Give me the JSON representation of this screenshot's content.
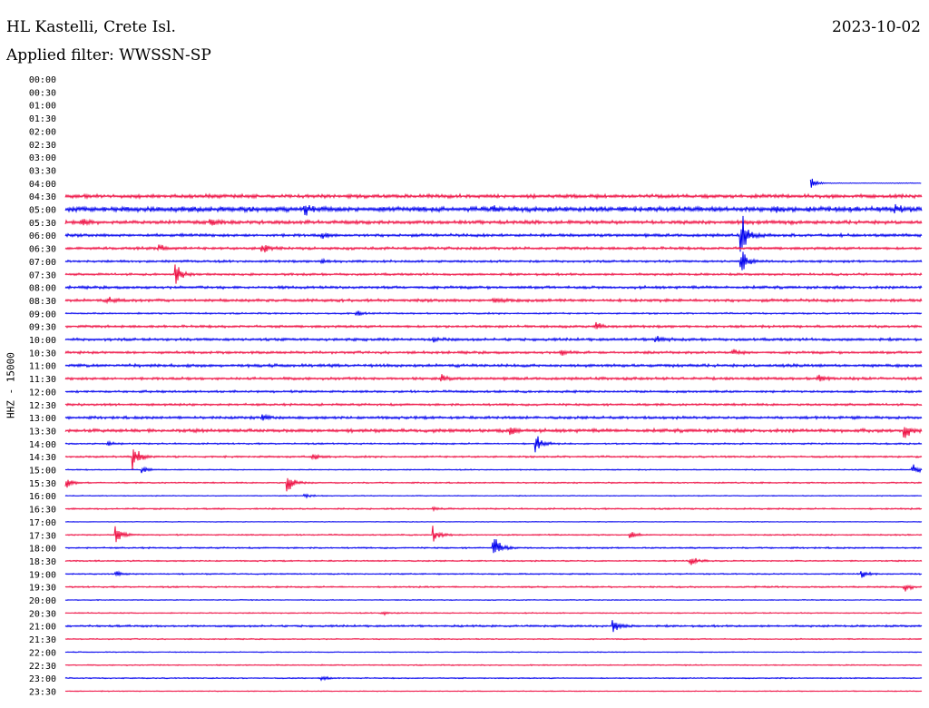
{
  "header": {
    "station": "HL Kastelli, Crete Isl.",
    "date": "2023-10-02",
    "filter": "Applied filter: WWSSN-SP"
  },
  "chart_data": {
    "type": "line",
    "title": "HL Kastelli, Crete Isl.",
    "subtitle": "Applied filter: WWSSN-SP",
    "ylabel": "HHZ - 15000",
    "y_tick_labels": [
      "00:00",
      "00:30",
      "01:00",
      "01:30",
      "02:00",
      "02:30",
      "03:00",
      "03:30",
      "04:00",
      "04:30",
      "05:00",
      "05:30",
      "06:00",
      "06:30",
      "07:00",
      "07:30",
      "08:00",
      "08:30",
      "09:00",
      "09:30",
      "10:00",
      "10:30",
      "11:00",
      "11:30",
      "12:00",
      "12:30",
      "13:00",
      "13:30",
      "14:00",
      "14:30",
      "15:00",
      "15:30",
      "16:00",
      "16:30",
      "17:00",
      "17:30",
      "18:00",
      "18:30",
      "19:00",
      "19:30",
      "20:00",
      "20:30",
      "21:00",
      "21:30",
      "22:00",
      "22:30",
      "23:00",
      "23:30"
    ],
    "grid": false,
    "colors": {
      "blue": "#0000ee",
      "red": "#ee1144"
    },
    "traces": [
      {
        "start": "04:00",
        "color": "blue",
        "start_fraction": 0.87,
        "noise": 0.3,
        "events": [
          [
            0.87,
            6
          ]
        ]
      },
      {
        "start": "04:30",
        "color": "red",
        "noise": 1.6,
        "events": []
      },
      {
        "start": "05:00",
        "color": "blue",
        "noise": 2.2,
        "events": [
          [
            0.28,
            4
          ],
          [
            0.5,
            3
          ],
          [
            0.83,
            3
          ],
          [
            0.97,
            4
          ]
        ]
      },
      {
        "start": "05:30",
        "color": "red",
        "noise": 1.6,
        "events": [
          [
            0.02,
            4
          ],
          [
            0.17,
            3
          ]
        ]
      },
      {
        "start": "06:00",
        "color": "blue",
        "noise": 1.3,
        "events": [
          [
            0.79,
            18
          ],
          [
            0.3,
            2
          ]
        ]
      },
      {
        "start": "06:30",
        "color": "red",
        "noise": 1.2,
        "events": [
          [
            0.11,
            4
          ],
          [
            0.23,
            5
          ]
        ]
      },
      {
        "start": "07:00",
        "color": "blue",
        "noise": 1.0,
        "events": [
          [
            0.79,
            10
          ],
          [
            0.3,
            2
          ]
        ]
      },
      {
        "start": "07:30",
        "color": "red",
        "noise": 1.0,
        "events": [
          [
            0.13,
            8
          ]
        ]
      },
      {
        "start": "08:00",
        "color": "blue",
        "noise": 1.2,
        "events": []
      },
      {
        "start": "08:30",
        "color": "red",
        "noise": 1.3,
        "events": [
          [
            0.05,
            3
          ],
          [
            0.5,
            3
          ]
        ]
      },
      {
        "start": "09:00",
        "color": "blue",
        "noise": 0.7,
        "events": [
          [
            0.34,
            3
          ]
        ]
      },
      {
        "start": "09:30",
        "color": "red",
        "noise": 1.1,
        "events": [
          [
            0.62,
            3
          ]
        ]
      },
      {
        "start": "10:00",
        "color": "blue",
        "noise": 1.2,
        "events": [
          [
            0.69,
            4
          ],
          [
            0.43,
            2
          ]
        ]
      },
      {
        "start": "10:30",
        "color": "red",
        "noise": 1.1,
        "events": [
          [
            0.58,
            3
          ],
          [
            0.78,
            3
          ]
        ]
      },
      {
        "start": "11:00",
        "color": "blue",
        "noise": 1.3,
        "events": []
      },
      {
        "start": "11:30",
        "color": "red",
        "noise": 1.2,
        "events": [
          [
            0.44,
            3
          ],
          [
            0.88,
            3
          ]
        ]
      },
      {
        "start": "12:00",
        "color": "blue",
        "noise": 1.0,
        "events": []
      },
      {
        "start": "12:30",
        "color": "red",
        "noise": 1.0,
        "events": []
      },
      {
        "start": "13:00",
        "color": "blue",
        "noise": 1.2,
        "events": [
          [
            0.23,
            3
          ]
        ]
      },
      {
        "start": "13:30",
        "color": "red",
        "noise": 1.5,
        "events": [
          [
            0.52,
            4
          ],
          [
            0.98,
            8
          ]
        ]
      },
      {
        "start": "14:00",
        "color": "blue",
        "noise": 0.7,
        "events": [
          [
            0.55,
            9
          ],
          [
            0.05,
            2
          ]
        ]
      },
      {
        "start": "14:30",
        "color": "red",
        "noise": 0.8,
        "events": [
          [
            0.08,
            11
          ],
          [
            0.29,
            3
          ]
        ]
      },
      {
        "start": "15:00",
        "color": "blue",
        "noise": 0.5,
        "events": [
          [
            0.09,
            3
          ],
          [
            0.99,
            5
          ]
        ]
      },
      {
        "start": "15:30",
        "color": "red",
        "noise": 0.6,
        "events": [
          [
            0.0,
            6
          ],
          [
            0.26,
            10
          ]
        ]
      },
      {
        "start": "16:00",
        "color": "blue",
        "noise": 0.4,
        "events": [
          [
            0.28,
            2
          ]
        ]
      },
      {
        "start": "16:30",
        "color": "red",
        "noise": 0.7,
        "events": [
          [
            0.43,
            2
          ]
        ]
      },
      {
        "start": "17:00",
        "color": "blue",
        "noise": 0.3,
        "events": []
      },
      {
        "start": "17:30",
        "color": "red",
        "noise": 0.6,
        "events": [
          [
            0.06,
            8
          ],
          [
            0.43,
            7
          ],
          [
            0.66,
            4
          ]
        ]
      },
      {
        "start": "18:00",
        "color": "blue",
        "noise": 0.7,
        "events": [
          [
            0.5,
            14
          ]
        ]
      },
      {
        "start": "18:30",
        "color": "red",
        "noise": 0.6,
        "events": [
          [
            0.73,
            5
          ]
        ]
      },
      {
        "start": "19:00",
        "color": "blue",
        "noise": 0.6,
        "events": [
          [
            0.06,
            3
          ],
          [
            0.93,
            4
          ]
        ]
      },
      {
        "start": "19:30",
        "color": "red",
        "noise": 0.7,
        "events": [
          [
            0.98,
            4
          ]
        ]
      },
      {
        "start": "20:00",
        "color": "blue",
        "noise": 0.4,
        "events": []
      },
      {
        "start": "20:30",
        "color": "red",
        "noise": 0.5,
        "events": [
          [
            0.37,
            2
          ]
        ]
      },
      {
        "start": "21:00",
        "color": "blue",
        "noise": 0.9,
        "events": [
          [
            0.64,
            6
          ]
        ]
      },
      {
        "start": "21:30",
        "color": "red",
        "noise": 0.5,
        "events": []
      },
      {
        "start": "22:00",
        "color": "blue",
        "noise": 0.4,
        "events": []
      },
      {
        "start": "22:30",
        "color": "red",
        "noise": 0.5,
        "events": []
      },
      {
        "start": "23:00",
        "color": "blue",
        "noise": 0.5,
        "events": [
          [
            0.3,
            2
          ]
        ]
      },
      {
        "start": "23:30",
        "color": "red",
        "noise": 0.4,
        "events": []
      }
    ]
  }
}
